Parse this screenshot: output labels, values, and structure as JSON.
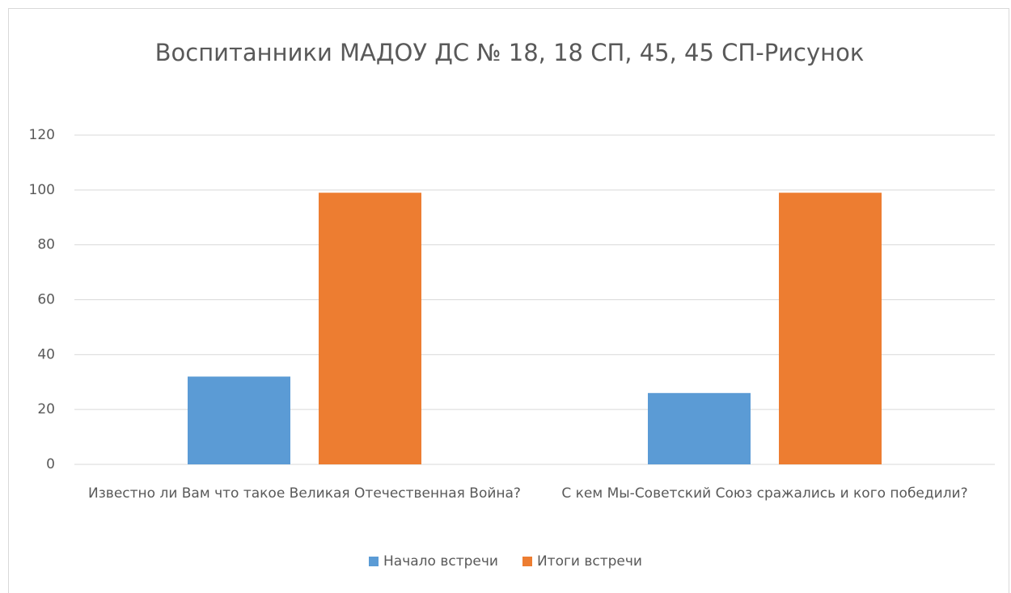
{
  "chart_data": {
    "type": "bar",
    "title": "Воспитанники МАДОУ ДС № 18, 18 СП, 45, 45 СП-Рисунок",
    "categories": [
      "Известно ли Вам что такое Великая Отечественная Война?",
      "С кем Мы-Советский Союз сражались и кого победили?"
    ],
    "series": [
      {
        "name": "Начало встречи",
        "color": "#5b9bd5",
        "values": [
          32,
          26
        ]
      },
      {
        "name": "Итоги встречи",
        "color": "#ed7d31",
        "values": [
          99,
          99
        ]
      }
    ],
    "ylim": [
      0,
      120
    ],
    "yticks": [
      0,
      20,
      40,
      60,
      80,
      100,
      120
    ],
    "grid": true,
    "legend": "bottom"
  }
}
